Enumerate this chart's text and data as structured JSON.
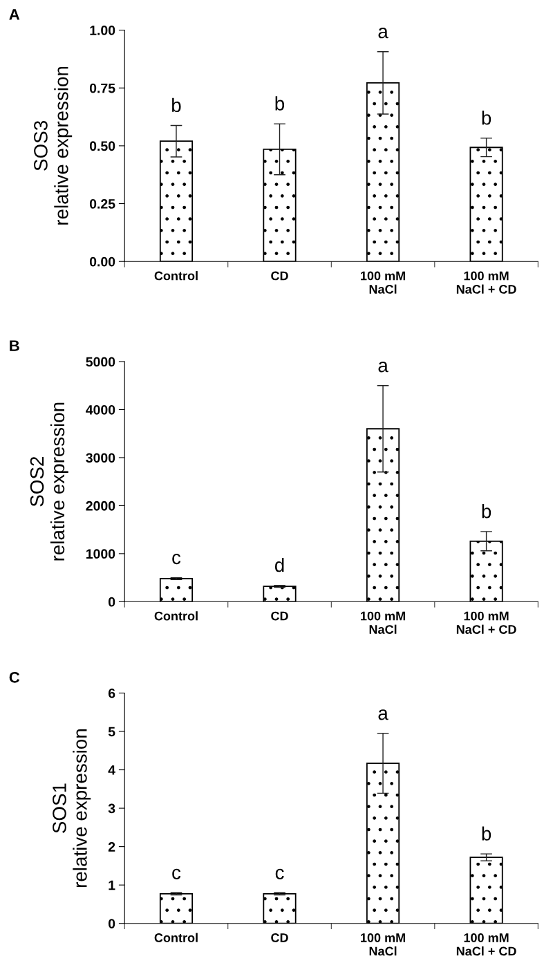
{
  "chart_data": [
    {
      "type": "bar",
      "title": "A",
      "ylabel": "SOS3\nrelative expression",
      "categories": [
        "Control",
        "CD",
        "100 mM\nNaCl",
        "100 mM\nNaCl + CD"
      ],
      "series": [
        {
          "color": "#000000",
          "values": [
            0.52,
            0.485,
            0.772,
            0.493
          ],
          "errors": [
            0.068,
            0.11,
            0.135,
            0.04
          ]
        }
      ],
      "ylim": [
        0,
        1
      ],
      "yticks": [
        {
          "value": 0,
          "label": "0.00"
        },
        {
          "value": 0.25,
          "label": "0.25"
        },
        {
          "value": 0.5,
          "label": "0.50"
        },
        {
          "value": 0.75,
          "label": "0.75"
        },
        {
          "value": 1,
          "label": "1.00"
        }
      ],
      "annotations": [
        "b",
        "b",
        "a",
        "b"
      ],
      "grid": false,
      "legend": false
    },
    {
      "type": "bar",
      "title": "B",
      "ylabel": "SOS2\nrelative expression",
      "categories": [
        "Control",
        "CD",
        "100 mM\nNaCl",
        "100 mM\nNaCl + CD"
      ],
      "series": [
        {
          "color": "#000000",
          "values": [
            480,
            320,
            3600,
            1260
          ],
          "errors": [
            20,
            20,
            900,
            200
          ]
        }
      ],
      "ylim": [
        0,
        5000
      ],
      "yticks": [
        0,
        1000,
        2000,
        3000,
        4000,
        5000
      ],
      "annotations": [
        "c",
        "d",
        "a",
        "b"
      ],
      "grid": false,
      "legend": false
    },
    {
      "type": "bar",
      "title": "C",
      "ylabel": "SOS1\nrelative expression",
      "categories": [
        "Control",
        "CD",
        "100 mM\nNaCl",
        "100 mM\nNaCl + CD"
      ],
      "series": [
        {
          "color": "#000000",
          "values": [
            0.77,
            0.77,
            4.17,
            1.72
          ],
          "errors": [
            0.03,
            0.03,
            0.78,
            0.09
          ]
        }
      ],
      "ylim": [
        0,
        6
      ],
      "yticks": [
        0,
        1,
        2,
        3,
        4,
        5,
        6
      ],
      "annotations": [
        "c",
        "c",
        "a",
        "b"
      ],
      "grid": false,
      "legend": false
    }
  ]
}
